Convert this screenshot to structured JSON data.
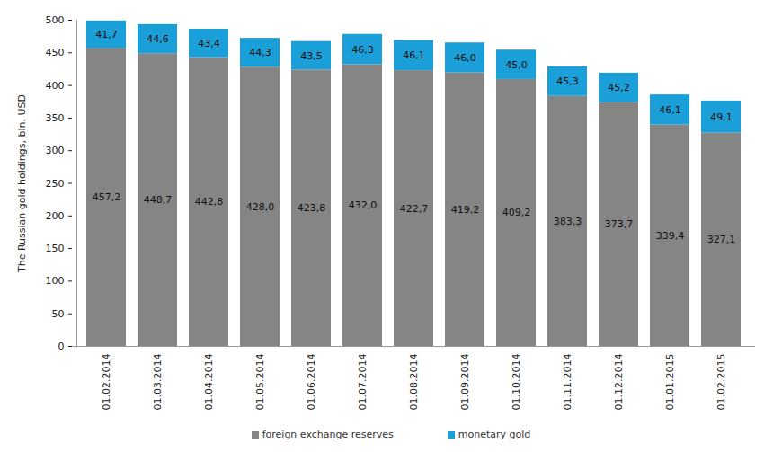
{
  "chart_data": {
    "type": "bar",
    "stacked": true,
    "data_labels": true,
    "grid": false,
    "legend": "bottom",
    "y_label": "The Russian gold holdings, bln. USD",
    "categories": [
      "01.02.2014",
      "01.03.2014",
      "01.04.2014",
      "01.05.2014",
      "01.06.2014",
      "01.07.2014",
      "01.08.2014",
      "01.09.2014",
      "01.10.2014",
      "01.11.2014",
      "01.12.2014",
      "01.01.2015",
      "01.02.2015"
    ],
    "series": [
      {
        "name": "foreign exchange reserves",
        "color": "#858585",
        "values": [
          457.2,
          448.7,
          442.8,
          428.0,
          423.8,
          432.0,
          422.7,
          419.2,
          409.2,
          383.3,
          373.7,
          339.4,
          327.1
        ],
        "value_labels": [
          "457,2",
          "448,7",
          "442,8",
          "428,0",
          "423,8",
          "432,0",
          "422,7",
          "419,2",
          "409,2",
          "383,3",
          "373,7",
          "339,4",
          "327,1"
        ]
      },
      {
        "name": "monetary gold",
        "color": "#1a9fd8",
        "values": [
          41.7,
          44.6,
          43.4,
          44.3,
          43.5,
          46.3,
          46.1,
          46.0,
          45.0,
          45.3,
          45.2,
          46.1,
          49.1
        ],
        "value_labels": [
          "41,7",
          "44,6",
          "43,4",
          "44,3",
          "43,5",
          "46,3",
          "46,1",
          "46,0",
          "45,0",
          "45,3",
          "45,2",
          "46,1",
          "49,1"
        ]
      }
    ],
    "ylim": [
      0,
      500
    ],
    "yticks": [
      0,
      50,
      100,
      150,
      200,
      250,
      300,
      350,
      400,
      450,
      500
    ]
  }
}
